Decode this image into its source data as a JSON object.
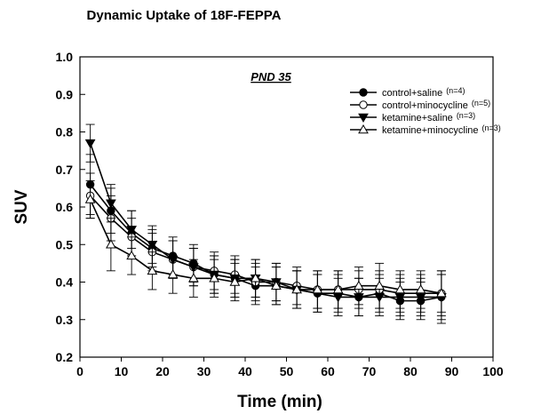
{
  "chart_data": {
    "type": "line",
    "title": "Dynamic Uptake of 18F-FEPPA",
    "annotation": "PND 35",
    "xlabel": "Time (min)",
    "ylabel": "SUV",
    "xlim": [
      0,
      100
    ],
    "ylim": [
      0.2,
      1.0
    ],
    "xticks": [
      0,
      10,
      20,
      30,
      40,
      50,
      60,
      70,
      80,
      90,
      100
    ],
    "yticks": [
      "0.2",
      "0.3",
      "0.4",
      "0.5",
      "0.6",
      "0.7",
      "0.8",
      "0.9",
      "1.0"
    ],
    "grid": false,
    "legend_position": "top-right",
    "x": [
      2.5,
      7.5,
      12.5,
      17.5,
      22.5,
      27.5,
      32.5,
      37.5,
      42.5,
      47.5,
      52.5,
      57.5,
      62.5,
      67.5,
      72.5,
      77.5,
      82.5,
      87.5
    ],
    "series": [
      {
        "name": "control+saline",
        "n_label": "(n=4)",
        "marker": "filled-circle",
        "values": [
          0.66,
          0.59,
          0.53,
          0.49,
          0.47,
          0.45,
          0.42,
          0.41,
          0.39,
          0.39,
          0.38,
          0.37,
          0.37,
          0.36,
          0.37,
          0.35,
          0.35,
          0.36
        ],
        "errors": [
          0.08,
          0.06,
          0.06,
          0.05,
          0.05,
          0.05,
          0.05,
          0.05,
          0.05,
          0.05,
          0.05,
          0.05,
          0.05,
          0.05,
          0.05,
          0.05,
          0.05,
          0.06
        ]
      },
      {
        "name": "control+minocycline",
        "n_label": "(n=5)",
        "marker": "open-circle",
        "values": [
          0.63,
          0.57,
          0.52,
          0.48,
          0.46,
          0.44,
          0.43,
          0.42,
          0.4,
          0.4,
          0.39,
          0.38,
          0.38,
          0.38,
          0.38,
          0.37,
          0.37,
          0.37
        ],
        "errors": [
          0.06,
          0.06,
          0.05,
          0.05,
          0.05,
          0.05,
          0.05,
          0.05,
          0.05,
          0.05,
          0.05,
          0.05,
          0.05,
          0.05,
          0.05,
          0.05,
          0.05,
          0.05
        ]
      },
      {
        "name": "ketamine+saline",
        "n_label": "(n=3)",
        "marker": "filled-triangle-down",
        "values": [
          0.77,
          0.61,
          0.54,
          0.5,
          0.46,
          0.44,
          0.42,
          0.41,
          0.41,
          0.4,
          0.38,
          0.37,
          0.36,
          0.36,
          0.36,
          0.36,
          0.36,
          0.36
        ],
        "errors": [
          0.05,
          0.05,
          0.05,
          0.05,
          0.05,
          0.05,
          0.05,
          0.05,
          0.05,
          0.05,
          0.05,
          0.05,
          0.05,
          0.05,
          0.05,
          0.05,
          0.05,
          0.07
        ]
      },
      {
        "name": "ketamine+minocycline",
        "n_label": "(n=3)",
        "marker": "open-triangle-up",
        "values": [
          0.62,
          0.5,
          0.47,
          0.43,
          0.42,
          0.41,
          0.41,
          0.4,
          0.41,
          0.39,
          0.38,
          0.38,
          0.38,
          0.39,
          0.39,
          0.38,
          0.38,
          0.37
        ],
        "errors": [
          0.05,
          0.07,
          0.05,
          0.05,
          0.05,
          0.05,
          0.05,
          0.05,
          0.05,
          0.05,
          0.05,
          0.05,
          0.05,
          0.05,
          0.06,
          0.05,
          0.05,
          0.06
        ]
      }
    ]
  }
}
